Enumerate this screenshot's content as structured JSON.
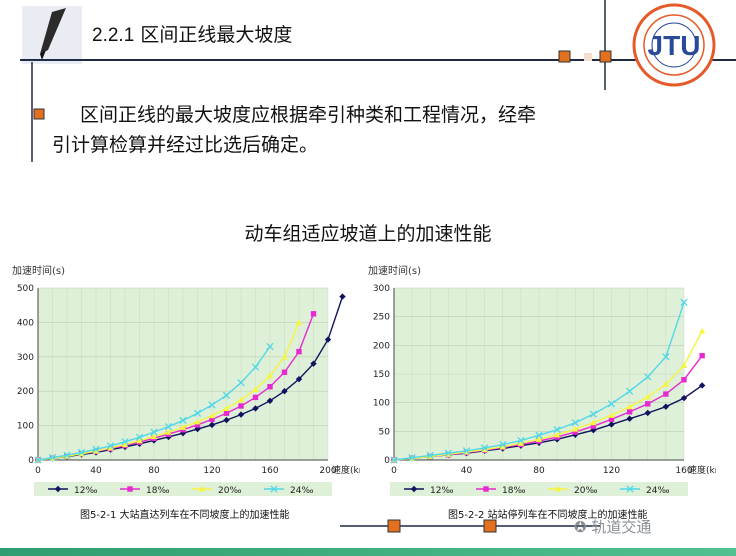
{
  "slide": {
    "section_number": "2.2.1",
    "section_title": "区间正线最大坡度",
    "body_line1": "区间正线的最大坡度应根据牵引种类和工程情况，经牵",
    "body_line2": "引计算检算并经过比选后确定。",
    "sub_heading": "动车组适应坡道上的加速性能",
    "watermark": "轨道交通",
    "colors": {
      "accent_orange": "#e2701f",
      "line_dark": "#1f2a44",
      "footer_green": "#3aa37a"
    }
  },
  "chart_data": [
    {
      "type": "line",
      "caption": "图5-2-1  大站直达列车在不同坡度上的加速性能",
      "ylabel": "加速时间(s)",
      "xlabel": "速度(km/h)",
      "ylim": [
        0,
        500
      ],
      "xlim": [
        0,
        200
      ],
      "yticks": [
        0,
        100,
        200,
        300,
        400,
        500
      ],
      "xticks": [
        0,
        40,
        80,
        120,
        160,
        200
      ],
      "grid": true,
      "legend": "bottom",
      "series": [
        {
          "name": "12‰",
          "color": "#10145e",
          "marker": "diamond",
          "x": [
            0,
            10,
            20,
            30,
            40,
            50,
            60,
            70,
            80,
            90,
            100,
            110,
            120,
            130,
            140,
            150,
            160,
            170,
            180,
            190,
            200,
            210
          ],
          "y": [
            0,
            5,
            10,
            16,
            22,
            30,
            38,
            47,
            57,
            67,
            78,
            90,
            102,
            116,
            132,
            150,
            172,
            200,
            235,
            280,
            350,
            475
          ]
        },
        {
          "name": "18‰",
          "color": "#e62ad0",
          "marker": "square",
          "x": [
            0,
            10,
            20,
            30,
            40,
            50,
            60,
            70,
            80,
            90,
            100,
            110,
            120,
            130,
            140,
            150,
            160,
            170,
            180,
            190
          ],
          "y": [
            0,
            5,
            11,
            18,
            25,
            33,
            42,
            52,
            63,
            75,
            88,
            102,
            118,
            136,
            157,
            182,
            213,
            255,
            315,
            425
          ]
        },
        {
          "name": "20‰",
          "color": "#f5f542",
          "marker": "triangle",
          "x": [
            0,
            10,
            20,
            30,
            40,
            50,
            60,
            70,
            80,
            90,
            100,
            110,
            120,
            130,
            140,
            150,
            160,
            170,
            180
          ],
          "y": [
            0,
            5,
            11,
            18,
            26,
            35,
            45,
            56,
            68,
            81,
            95,
            111,
            129,
            150,
            175,
            205,
            245,
            300,
            400
          ]
        },
        {
          "name": "24‰",
          "color": "#4fd8e8",
          "marker": "x",
          "x": [
            0,
            10,
            20,
            30,
            40,
            50,
            60,
            70,
            80,
            90,
            100,
            110,
            120,
            130,
            140,
            150,
            160
          ],
          "y": [
            0,
            7,
            14,
            22,
            31,
            41,
            53,
            66,
            81,
            97,
            115,
            136,
            160,
            188,
            225,
            270,
            330
          ]
        }
      ]
    },
    {
      "type": "line",
      "caption": "图5-2-2  站站停列车在不同坡度上的加速性能",
      "ylabel": "加速时间(s)",
      "xlabel": "速度(km/h)",
      "ylim": [
        0,
        300
      ],
      "xlim": [
        0,
        160
      ],
      "yticks": [
        0,
        50,
        100,
        150,
        200,
        250,
        300
      ],
      "xticks": [
        0,
        40,
        80,
        120,
        160
      ],
      "grid": true,
      "legend": "bottom",
      "series": [
        {
          "name": "12‰",
          "color": "#10145e",
          "marker": "diamond",
          "x": [
            0,
            10,
            20,
            30,
            40,
            50,
            60,
            70,
            80,
            90,
            100,
            110,
            120,
            130,
            140,
            150,
            160,
            170
          ],
          "y": [
            0,
            3,
            6,
            9,
            12,
            16,
            20,
            25,
            30,
            36,
            44,
            52,
            62,
            72,
            82,
            93,
            108,
            130
          ]
        },
        {
          "name": "18‰",
          "color": "#e62ad0",
          "marker": "square",
          "x": [
            0,
            10,
            20,
            30,
            40,
            50,
            60,
            70,
            80,
            90,
            100,
            110,
            120,
            130,
            140,
            150,
            160,
            170
          ],
          "y": [
            0,
            3,
            6,
            9,
            13,
            17,
            22,
            27,
            33,
            40,
            49,
            59,
            71,
            84,
            98,
            115,
            140,
            182
          ]
        },
        {
          "name": "20‰",
          "color": "#f5f542",
          "marker": "triangle",
          "x": [
            0,
            10,
            20,
            30,
            40,
            50,
            60,
            70,
            80,
            90,
            100,
            110,
            120,
            130,
            140,
            150,
            160,
            170
          ],
          "y": [
            0,
            3,
            6,
            10,
            14,
            18,
            23,
            29,
            36,
            44,
            54,
            65,
            78,
            93,
            110,
            132,
            165,
            225
          ]
        },
        {
          "name": "24‰",
          "color": "#4fd8e8",
          "marker": "x",
          "x": [
            0,
            10,
            20,
            30,
            40,
            50,
            60,
            70,
            80,
            90,
            100,
            110,
            120,
            130,
            140,
            150,
            160
          ],
          "y": [
            0,
            4,
            8,
            12,
            16,
            21,
            27,
            34,
            43,
            53,
            65,
            80,
            98,
            120,
            145,
            180,
            275
          ]
        }
      ]
    }
  ]
}
